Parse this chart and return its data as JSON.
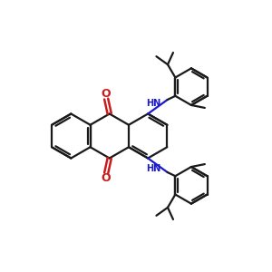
{
  "bg": "#ffffff",
  "bond_color": "#1a1a1a",
  "lw": 1.6,
  "nh_color": "#1a1acc",
  "o_color": "#cc1a1a",
  "figsize": [
    3.0,
    3.0
  ],
  "dpi": 100,
  "xlim": [
    0,
    10
  ],
  "ylim": [
    0,
    10
  ]
}
